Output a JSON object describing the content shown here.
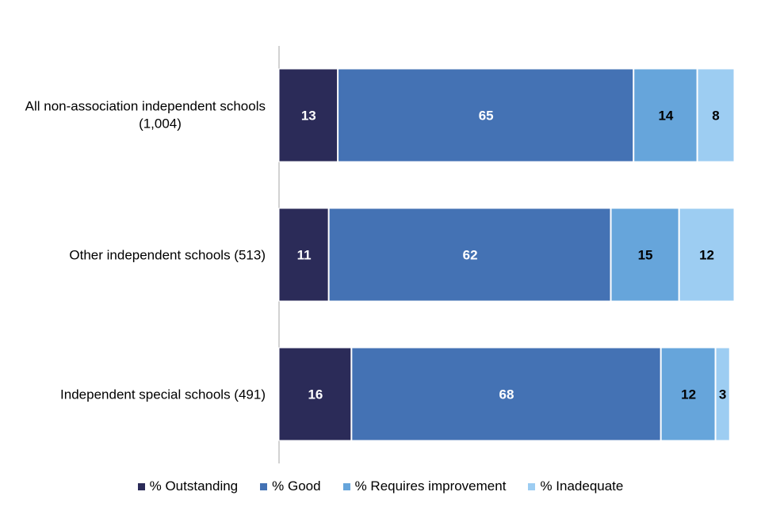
{
  "chart_data": {
    "type": "bar",
    "orientation": "horizontal",
    "stacked": true,
    "title": "",
    "xlabel": "",
    "ylabel": "",
    "xlim": [
      0,
      100
    ],
    "grid": false,
    "legend_position": "bottom",
    "categories": [
      "All non-association independent schools (1,004)",
      "Other independent schools  (513)",
      "Independent special schools (491)"
    ],
    "series": [
      {
        "name": "% Outstanding",
        "color": "#2b2b58",
        "label_color": "#ffffff",
        "values": [
          13,
          11,
          16
        ]
      },
      {
        "name": "% Good",
        "color": "#4472b4",
        "label_color": "#ffffff",
        "values": [
          65,
          62,
          68
        ]
      },
      {
        "name": "% Requires improvement",
        "color": "#66a5db",
        "label_color": "#000000",
        "values": [
          14,
          15,
          12
        ]
      },
      {
        "name": "% Inadequate",
        "color": "#9dcdf2",
        "label_color": "#000000",
        "values": [
          8,
          12,
          3
        ]
      }
    ]
  }
}
